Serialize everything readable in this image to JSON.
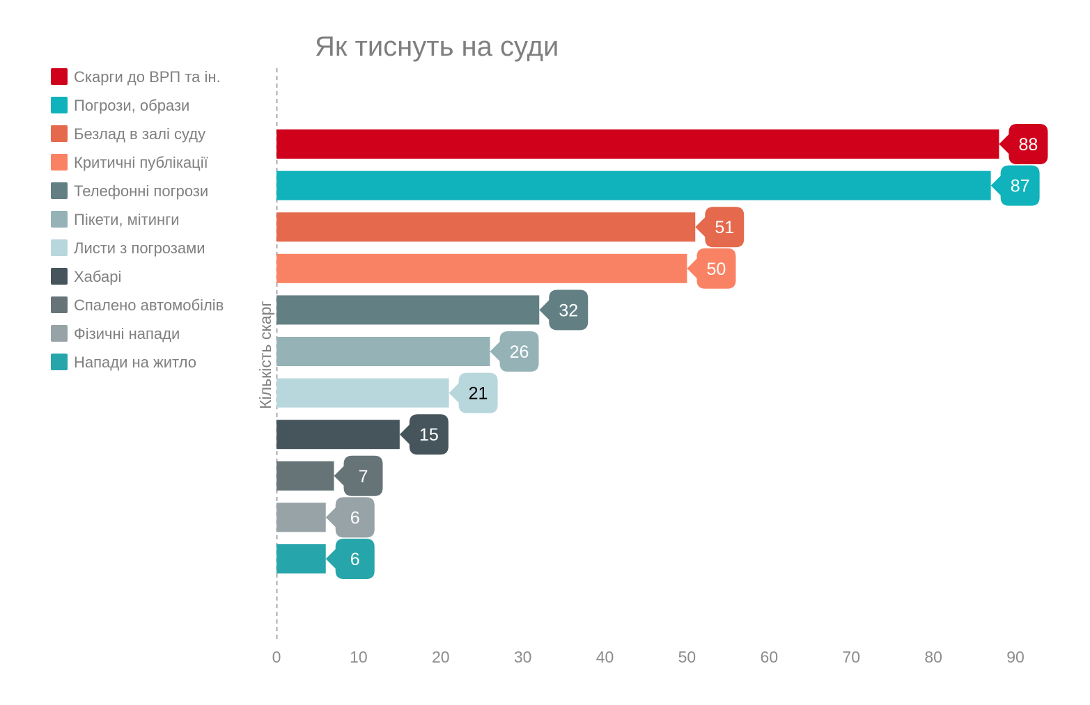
{
  "chart_data": {
    "type": "bar",
    "orientation": "horizontal",
    "title": "Як тиснуть на суди",
    "xlabel": "",
    "ylabel": "Кількість скарг",
    "xlim": [
      0,
      90
    ],
    "xticks": [
      0,
      10,
      20,
      30,
      40,
      50,
      60,
      70,
      80,
      90
    ],
    "grid": false,
    "legend_position": "top-left",
    "series": [
      {
        "name": "Скарги до ВРП та ін.",
        "value": 88,
        "color": "#d0021b",
        "label_color": "#ffffff"
      },
      {
        "name": "Погрози, образи",
        "value": 87,
        "color": "#10b3bc",
        "label_color": "#ffffff"
      },
      {
        "name": "Безлад в залі суду",
        "value": 51,
        "color": "#e5694c",
        "label_color": "#ffffff"
      },
      {
        "name": "Критичні публікації",
        "value": 50,
        "color": "#fa8264",
        "label_color": "#ffffff"
      },
      {
        "name": "Телефонні погрози",
        "value": 32,
        "color": "#627f84",
        "label_color": "#ffffff"
      },
      {
        "name": "Пікети, мітинги",
        "value": 26,
        "color": "#95b2b6",
        "label_color": "#ffffff"
      },
      {
        "name": "Листи з погрозами",
        "value": 21,
        "color": "#b8d7dc",
        "label_color": "#000000"
      },
      {
        "name": "Хабарі",
        "value": 15,
        "color": "#46555b",
        "label_color": "#ffffff"
      },
      {
        "name": "Спалено автомобілів",
        "value": 7,
        "color": "#667477",
        "label_color": "#ffffff"
      },
      {
        "name": "Фізичні напади",
        "value": 6,
        "color": "#97a3a6",
        "label_color": "#ffffff"
      },
      {
        "name": "Напади на житло",
        "value": 6,
        "color": "#26a6aa",
        "label_color": "#ffffff"
      }
    ]
  }
}
